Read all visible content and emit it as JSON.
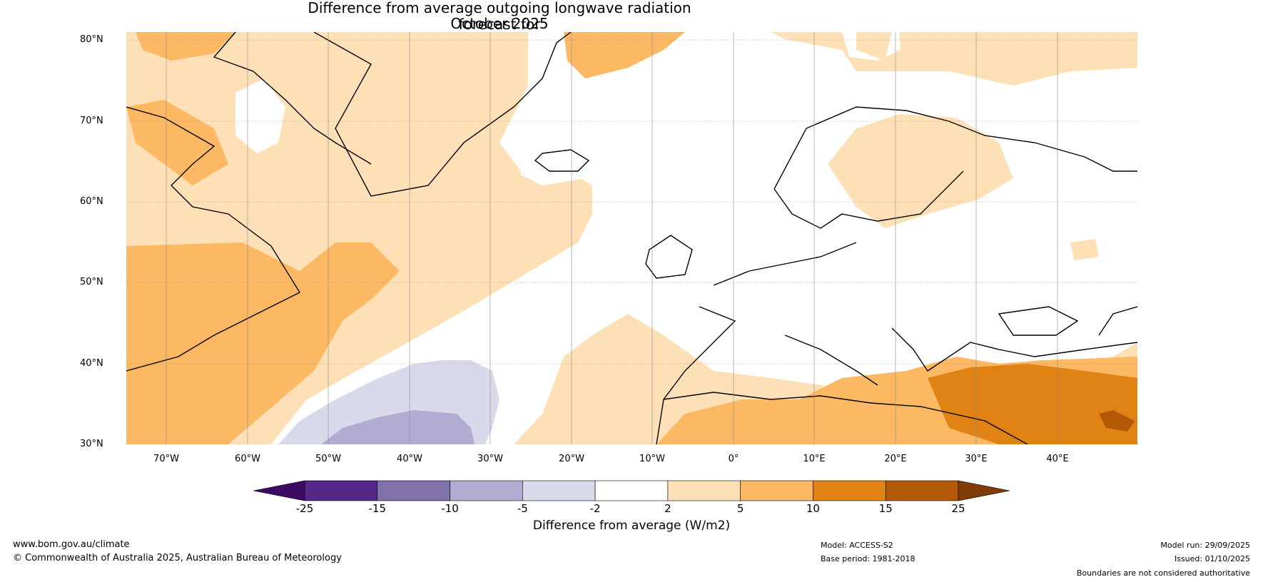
{
  "title": {
    "line1": "Difference from average outgoing longwave radiation forecast for",
    "line2": "October 2025"
  },
  "axes": {
    "lat_labels": [
      "80°N",
      "70°N",
      "60°N",
      "50°N",
      "40°N",
      "30°N"
    ],
    "lon_labels": [
      "70°W",
      "60°W",
      "50°W",
      "40°W",
      "30°W",
      "20°W",
      "10°W",
      "0°",
      "10°E",
      "20°E",
      "30°E",
      "40°E"
    ]
  },
  "colorbar": {
    "label": "Difference from average (W/m2)",
    "ticks": [
      "-25",
      "-15",
      "-10",
      "-5",
      "-2",
      "2",
      "5",
      "10",
      "15",
      "25"
    ],
    "colors": [
      "#3f0a63",
      "#542788",
      "#8073ac",
      "#b2abd2",
      "#d8daeb",
      "#ffffff",
      "#fee0b6",
      "#fdb863",
      "#e08214",
      "#b35806",
      "#7f3b08"
    ]
  },
  "footer": {
    "website": "www.bom.gov.au/climate",
    "copyright": "© Commonwealth of Australia 2025, Australian Bureau of Meteorology",
    "model": "Model: ACCESS-S2",
    "base_period": "Base period: 1981-2018",
    "model_run": "Model run: 29/09/2025",
    "issued": "Issued: 01/10/2025",
    "disclaimer": "Boundaries are not considered authoritative"
  }
}
